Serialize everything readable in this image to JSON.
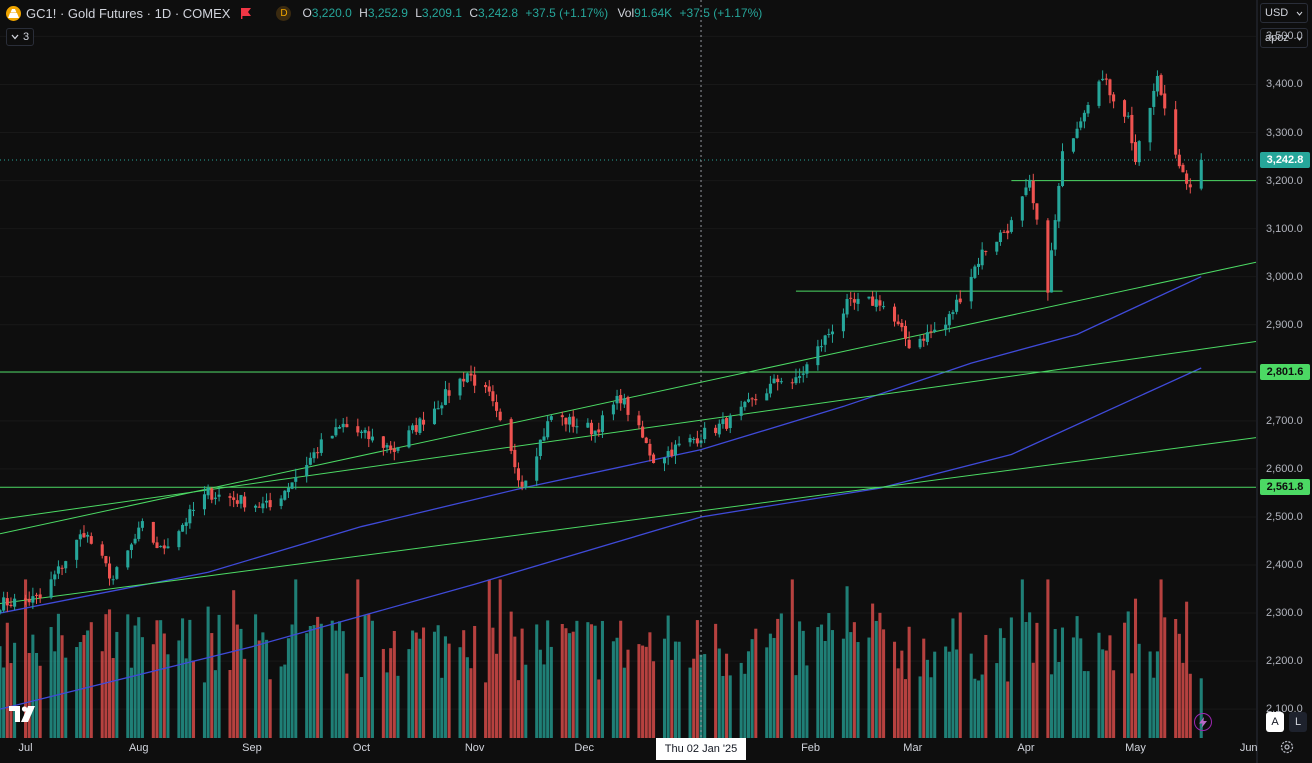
{
  "header": {
    "symbol": "GC1! · Gold Futures · 1D · COMEX",
    "d_badge": "D",
    "o_label": "O",
    "o_value": "3,220.0",
    "h_label": "H",
    "h_value": "3,252.9",
    "l_label": "L",
    "l_value": "3,209.1",
    "c_label": "C",
    "c_value": "3,242.8",
    "change": "+37.5 (+1.17%)",
    "vol_label": "Vol",
    "vol_value": "91.64K",
    "vol_change": "+37.5 (+1.17%)",
    "collapse_count": "3"
  },
  "controls": {
    "currency": "USD",
    "unit": "apoz",
    "auto_button": "A",
    "log_button": "L"
  },
  "crosshair_label": "Thu 02 Jan '25",
  "badges": {
    "last_price": "3,242.8",
    "level_high": "2,801.6",
    "level_low": "2,561.8"
  },
  "colors": {
    "bg": "#0e0e0e",
    "up": "#26a69a",
    "down": "#ef5350",
    "trendline": "#4cd964",
    "ma": "#3f4ad8",
    "last_price_badge": "#26a69a",
    "level_badge": "#4cd964"
  },
  "chart_data": {
    "type": "candlestick",
    "ylim": [
      2040,
      3530
    ],
    "y_ticks": [
      "3,500.0",
      "3,400.0",
      "3,300.0",
      "3,200.0",
      "3,100.0",
      "3,000.0",
      "2,900.0",
      "2,800.0",
      "2,700.0",
      "2,600.0",
      "2,500.0",
      "2,400.0",
      "2,300.0",
      "2,200.0",
      "2,100.0"
    ],
    "x_ticks": [
      "Jul",
      "Aug",
      "Sep",
      "Oct",
      "Nov",
      "Dec",
      "Jan",
      "Feb",
      "Mar",
      "Apr",
      "May",
      "Jun"
    ],
    "close_anchors": [
      {
        "d": "2024-06-24",
        "c": 2320
      },
      {
        "d": "2024-07-05",
        "c": 2330
      },
      {
        "d": "2024-07-17",
        "c": 2470
      },
      {
        "d": "2024-07-25",
        "c": 2370
      },
      {
        "d": "2024-08-02",
        "c": 2480
      },
      {
        "d": "2024-08-07",
        "c": 2430
      },
      {
        "d": "2024-08-20",
        "c": 2550
      },
      {
        "d": "2024-09-06",
        "c": 2520
      },
      {
        "d": "2024-09-20",
        "c": 2650
      },
      {
        "d": "2024-09-26",
        "c": 2690
      },
      {
        "d": "2024-10-10",
        "c": 2640
      },
      {
        "d": "2024-10-30",
        "c": 2800
      },
      {
        "d": "2024-11-05",
        "c": 2750
      },
      {
        "d": "2024-11-14",
        "c": 2570
      },
      {
        "d": "2024-11-22",
        "c": 2710
      },
      {
        "d": "2024-12-04",
        "c": 2680
      },
      {
        "d": "2024-12-11",
        "c": 2750
      },
      {
        "d": "2024-12-20",
        "c": 2620
      },
      {
        "d": "2025-01-02",
        "c": 2670
      },
      {
        "d": "2025-01-10",
        "c": 2700
      },
      {
        "d": "2025-01-24",
        "c": 2790
      },
      {
        "d": "2025-01-28",
        "c": 2780
      },
      {
        "d": "2025-02-11",
        "c": 2940
      },
      {
        "d": "2025-02-20",
        "c": 2950
      },
      {
        "d": "2025-02-28",
        "c": 2860
      },
      {
        "d": "2025-03-10",
        "c": 2900
      },
      {
        "d": "2025-03-20",
        "c": 3050
      },
      {
        "d": "2025-03-28",
        "c": 3110
      },
      {
        "d": "2025-04-02",
        "c": 3190
      },
      {
        "d": "2025-04-07",
        "c": 2980
      },
      {
        "d": "2025-04-11",
        "c": 3250
      },
      {
        "d": "2025-04-21",
        "c": 3420
      },
      {
        "d": "2025-04-29",
        "c": 3330
      },
      {
        "d": "2025-05-01",
        "c": 3240
      },
      {
        "d": "2025-05-07",
        "c": 3410
      },
      {
        "d": "2025-05-15",
        "c": 3180
      },
      {
        "d": "2025-05-19",
        "c": 3242.8
      }
    ],
    "ma_series": [
      {
        "name": "",
        "points": [
          {
            "d": "2024-06-24",
            "v": 2300
          },
          {
            "d": "2024-08-20",
            "v": 2385
          },
          {
            "d": "2024-10-01",
            "v": 2480
          },
          {
            "d": "2024-11-14",
            "v": 2560
          },
          {
            "d": "2025-01-02",
            "v": 2640
          },
          {
            "d": "2025-02-10",
            "v": 2730
          },
          {
            "d": "2025-03-17",
            "v": 2820
          },
          {
            "d": "2025-04-15",
            "v": 2880
          },
          {
            "d": "2025-05-19",
            "v": 3000
          }
        ]
      },
      {
        "name": "",
        "points": [
          {
            "d": "2024-06-24",
            "v": 2100
          },
          {
            "d": "2024-09-01",
            "v": 2230
          },
          {
            "d": "2024-11-01",
            "v": 2360
          },
          {
            "d": "2025-01-02",
            "v": 2500
          },
          {
            "d": "2025-02-20",
            "v": 2560
          },
          {
            "d": "2025-03-28",
            "v": 2630
          },
          {
            "d": "2025-05-19",
            "v": 2810
          }
        ]
      }
    ],
    "trendlines": [
      {
        "from": {
          "d": "2024-06-24",
          "v": 2465
        },
        "to": {
          "d": "2025-06-03",
          "v": 3030
        }
      },
      {
        "from": {
          "d": "2024-06-24",
          "v": 2495
        },
        "to": {
          "d": "2025-06-03",
          "v": 2865
        }
      },
      {
        "from": {
          "d": "2024-06-24",
          "v": 2320
        },
        "to": {
          "d": "2025-06-03",
          "v": 2665
        }
      },
      {
        "from": {
          "d": "2025-01-28",
          "v": 2970
        },
        "to": {
          "d": "2025-04-11",
          "v": 2970
        }
      },
      {
        "from": {
          "d": "2025-03-28",
          "v": 3200
        },
        "to": {
          "d": "2025-06-03",
          "v": 3200
        }
      }
    ],
    "levels": [
      2801.6,
      2561.8
    ],
    "last_price": 3242.8,
    "crosshair_date": "2025-01-02"
  }
}
